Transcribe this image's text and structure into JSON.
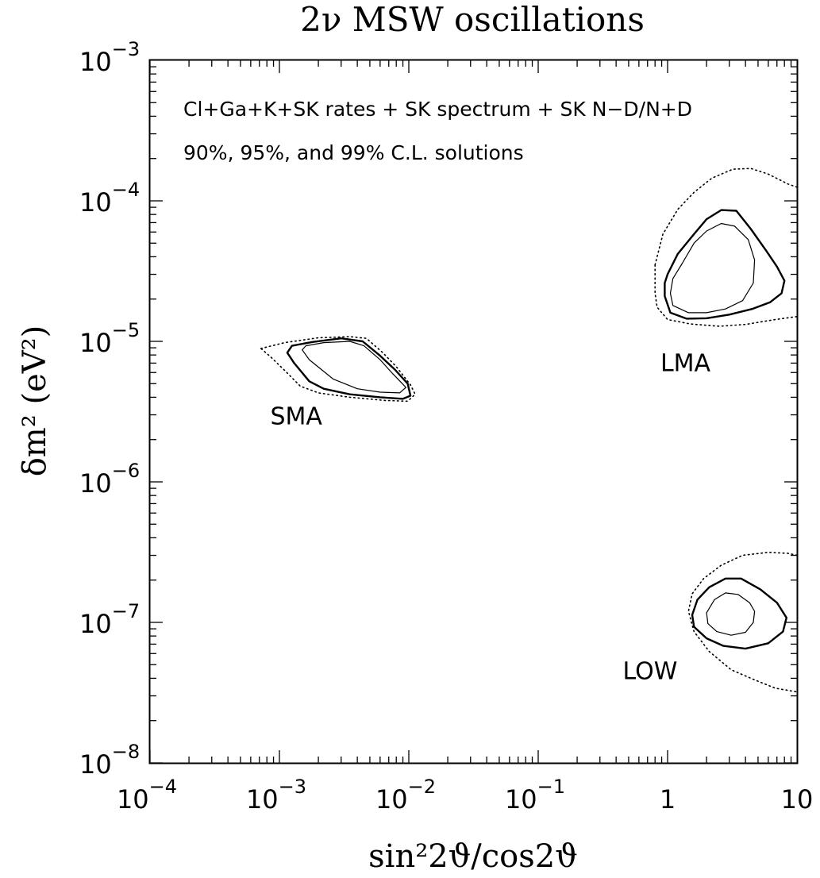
{
  "chart_data": {
    "type": "contour",
    "title": "2ν  MSW  oscillations",
    "xlabel": "sin²2ϑ/cos2ϑ",
    "ylabel": "δm²  (eV²)",
    "x_scale": "log",
    "y_scale": "log",
    "xlim": [
      0.0001,
      10
    ],
    "ylim": [
      1e-08,
      0.001
    ],
    "x_ticks": [
      {
        "value": 0.0001,
        "base": "10",
        "exp": "−4"
      },
      {
        "value": 0.001,
        "base": "10",
        "exp": "−3"
      },
      {
        "value": 0.01,
        "base": "10",
        "exp": "−2"
      },
      {
        "value": 0.1,
        "base": "10",
        "exp": "−1"
      },
      {
        "value": 1,
        "base": "1",
        "exp": ""
      },
      {
        "value": 10,
        "base": "10",
        "exp": ""
      }
    ],
    "y_ticks": [
      {
        "value": 1e-08,
        "base": "10",
        "exp": "−8"
      },
      {
        "value": 1e-07,
        "base": "10",
        "exp": "−7"
      },
      {
        "value": 1e-06,
        "base": "10",
        "exp": "−6"
      },
      {
        "value": 1e-05,
        "base": "10",
        "exp": "−5"
      },
      {
        "value": 0.0001,
        "base": "10",
        "exp": "−4"
      },
      {
        "value": 0.001,
        "base": "10",
        "exp": "−3"
      }
    ],
    "annotations": [
      "Cl+Ga+K+SK rates + SK spectrum + SK N−D/N+D",
      "90%, 95%, and 99% C.L. solutions"
    ],
    "contour_levels": [
      {
        "level": "90% C.L.",
        "style": "thin-solid"
      },
      {
        "level": "95% C.L.",
        "style": "thick-solid"
      },
      {
        "level": "99% C.L.",
        "style": "dotted"
      }
    ],
    "regions": [
      {
        "label": "SMA",
        "label_at": [
          0.00085,
          3e-06
        ],
        "contours": {
          "90": [
            [
              0.0016,
              9.3e-06
            ],
            [
              0.0022,
              9.8e-06
            ],
            [
              0.0035,
              1e-05
            ],
            [
              0.0045,
              9.3e-06
            ],
            [
              0.006,
              7.4e-06
            ],
            [
              0.0075,
              5.9e-06
            ],
            [
              0.0095,
              4.7e-06
            ],
            [
              0.0085,
              4.3e-06
            ],
            [
              0.006,
              4.35e-06
            ],
            [
              0.004,
              4.6e-06
            ],
            [
              0.0026,
              5.4e-06
            ],
            [
              0.0017,
              7.4e-06
            ],
            [
              0.0015,
              8.7e-06
            ]
          ],
          "95": [
            [
              0.00125,
              9.3e-06
            ],
            [
              0.0018,
              9.9e-06
            ],
            [
              0.003,
              1.05e-05
            ],
            [
              0.0044,
              1e-05
            ],
            [
              0.006,
              7.9e-06
            ],
            [
              0.0078,
              6.3e-06
            ],
            [
              0.0098,
              5e-06
            ],
            [
              0.0103,
              4.1e-06
            ],
            [
              0.009,
              3.9e-06
            ],
            [
              0.006,
              4e-06
            ],
            [
              0.0035,
              4.2e-06
            ],
            [
              0.0022,
              4.6e-06
            ],
            [
              0.0017,
              5.2e-06
            ],
            [
              0.0013,
              7e-06
            ],
            [
              0.00115,
              8.3e-06
            ]
          ],
          "99": [
            [
              0.00072,
              8.9e-06
            ],
            [
              0.0011,
              9.8e-06
            ],
            [
              0.002,
              1.06e-05
            ],
            [
              0.0035,
              1.08e-05
            ],
            [
              0.0047,
              1.05e-05
            ],
            [
              0.0063,
              8.3e-06
            ],
            [
              0.008,
              6.6e-06
            ],
            [
              0.0103,
              4.9e-06
            ],
            [
              0.0112,
              4.2e-06
            ],
            [
              0.0098,
              3.75e-06
            ],
            [
              0.0065,
              3.8e-06
            ],
            [
              0.0035,
              4e-06
            ],
            [
              0.002,
              4.3e-06
            ],
            [
              0.00145,
              4.8e-06
            ],
            [
              0.0011,
              6.2e-06
            ],
            [
              0.00085,
              7.8e-06
            ]
          ]
        }
      },
      {
        "label": "LMA",
        "label_at": [
          0.88,
          7.2e-06
        ],
        "contours": {
          "90": [
            [
              1.3,
              3.6e-05
            ],
            [
              1.6,
              5e-05
            ],
            [
              2.0,
              6.1e-05
            ],
            [
              2.6,
              6.9e-05
            ],
            [
              3.3,
              6.6e-05
            ],
            [
              4.2,
              5.3e-05
            ],
            [
              4.7,
              3.8e-05
            ],
            [
              4.6,
              2.6e-05
            ],
            [
              3.8,
              1.95e-05
            ],
            [
              2.8,
              1.7e-05
            ],
            [
              2.0,
              1.6e-05
            ],
            [
              1.45,
              1.6e-05
            ],
            [
              1.1,
              1.8e-05
            ],
            [
              1.05,
              2.2e-05
            ],
            [
              1.1,
              2.8e-05
            ]
          ],
          "95": [
            [
              1.0,
              3e-05
            ],
            [
              1.2,
              4.2e-05
            ],
            [
              1.6,
              5.8e-05
            ],
            [
              2.0,
              7.4e-05
            ],
            [
              2.6,
              8.6e-05
            ],
            [
              3.4,
              8.5e-05
            ],
            [
              4.4,
              6.3e-05
            ],
            [
              5.8,
              4.4e-05
            ],
            [
              7.0,
              3.4e-05
            ],
            [
              8.0,
              2.7e-05
            ],
            [
              7.6,
              2.2e-05
            ],
            [
              6.2,
              1.9e-05
            ],
            [
              4.5,
              1.7e-05
            ],
            [
              3.0,
              1.55e-05
            ],
            [
              2.0,
              1.46e-05
            ],
            [
              1.4,
              1.45e-05
            ],
            [
              1.05,
              1.6e-05
            ],
            [
              0.95,
              2.1e-05
            ],
            [
              0.95,
              2.6e-05
            ]
          ],
          "99": [
            [
              0.8,
              3.5e-05
            ],
            [
              0.92,
              5.8e-05
            ],
            [
              1.2,
              8.7e-05
            ],
            [
              1.6,
              0.000115
            ],
            [
              2.2,
              0.000145
            ],
            [
              3.2,
              0.000168
            ],
            [
              4.4,
              0.00017
            ],
            [
              6.0,
              0.000155
            ],
            [
              8.5,
              0.000132
            ],
            [
              10,
              0.000125
            ]
          ],
          "99_lower": [
            [
              0.8,
              3.5e-05
            ],
            [
              0.8,
              2.2e-05
            ],
            [
              0.83,
              1.75e-05
            ],
            [
              1.0,
              1.43e-05
            ],
            [
              1.5,
              1.33e-05
            ],
            [
              2.5,
              1.28e-05
            ],
            [
              4.0,
              1.32e-05
            ],
            [
              6.5,
              1.42e-05
            ],
            [
              10,
              1.5e-05
            ]
          ]
        }
      },
      {
        "label": "LOW",
        "label_at": [
          0.45,
          4.6e-08
        ],
        "contours": {
          "90": [
            [
              2.0,
              1.17e-07
            ],
            [
              2.3,
              1.45e-07
            ],
            [
              2.8,
              1.62e-07
            ],
            [
              3.5,
              1.58e-07
            ],
            [
              4.3,
              1.38e-07
            ],
            [
              4.7,
              1.2e-07
            ],
            [
              4.6,
              1e-07
            ],
            [
              4.0,
              8.5e-08
            ],
            [
              3.1,
              8.1e-08
            ],
            [
              2.4,
              8.6e-08
            ],
            [
              2.05,
              9.8e-08
            ]
          ],
          "95": [
            [
              1.55,
              1.13e-07
            ],
            [
              1.7,
              1.45e-07
            ],
            [
              2.1,
              1.78e-07
            ],
            [
              2.8,
              2.05e-07
            ],
            [
              3.7,
              2.05e-07
            ],
            [
              5.2,
              1.72e-07
            ],
            [
              7.0,
              1.38e-07
            ],
            [
              8.3,
              1.08e-07
            ],
            [
              7.8,
              8.6e-08
            ],
            [
              6.0,
              7.1e-08
            ],
            [
              4.0,
              6.5e-08
            ],
            [
              2.7,
              6.8e-08
            ],
            [
              2.0,
              7.7e-08
            ],
            [
              1.6,
              9.3e-08
            ]
          ],
          "99": [
            [
              10,
              3e-07
            ],
            [
              8.5,
              3.1e-07
            ],
            [
              6.0,
              3.15e-07
            ],
            [
              3.8,
              3e-07
            ],
            [
              2.6,
              2.55e-07
            ],
            [
              1.9,
              2.05e-07
            ],
            [
              1.55,
              1.6e-07
            ],
            [
              1.45,
              1.2e-07
            ],
            [
              1.6,
              8.6e-08
            ],
            [
              2.1,
              6.2e-08
            ],
            [
              3.1,
              4.6e-08
            ],
            [
              4.7,
              3.9e-08
            ],
            [
              6.8,
              3.4e-08
            ],
            [
              10,
              3.2e-08
            ]
          ]
        }
      }
    ]
  }
}
